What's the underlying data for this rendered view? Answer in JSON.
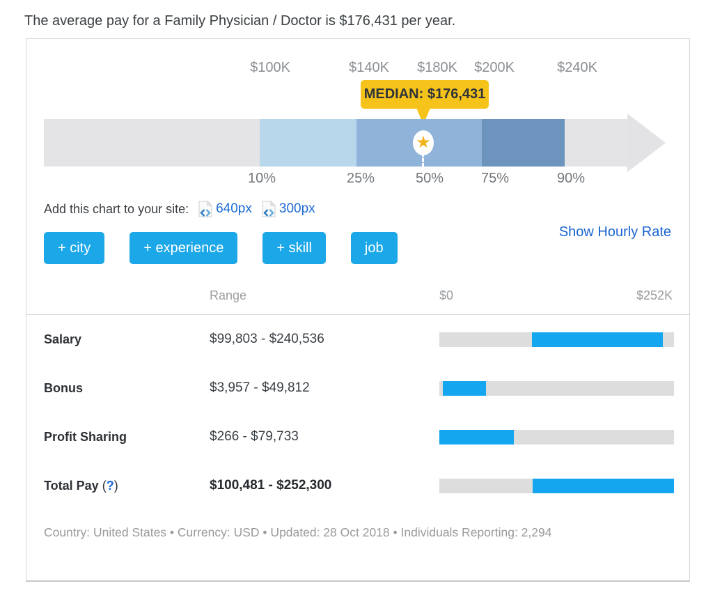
{
  "page": {
    "title": "The average pay for a Family Physician / Doctor is $176,431 per year."
  },
  "colors": {
    "accent_blue": "#1ca7e8",
    "bar_fill_blue": "#14a6ee",
    "link_blue": "#1a66d0",
    "tooltip_yellow": "#f6c31b",
    "star_gold": "#f1b31c",
    "segment_gray": "#e4e4e6",
    "segment_light_blue": "#b9d7eb",
    "segment_mid_blue": "#8fb3d9",
    "segment_dark_blue": "#6c94bc",
    "track_gray": "#dddddd"
  },
  "icons": {
    "star": "★",
    "embed_code": "code-page-icon"
  },
  "chart_data": [
    {
      "type": "percentile_arrow",
      "title": "MEDIAN: $176,431",
      "median_value": 176431,
      "median_label": "MEDIAN: $176,431",
      "axis_ticks": [
        "$100K",
        "$140K",
        "$180K",
        "$200K",
        "$240K"
      ],
      "percentile_ticks": [
        "10%",
        "25%",
        "50%",
        "75%",
        "90%"
      ],
      "p10_value": 99803,
      "p90_value": 240536,
      "legend_position": "none",
      "grid": false
    },
    {
      "type": "bar",
      "axis": {
        "min_label": "$0",
        "max_label": "$252K",
        "max_value": 252300
      },
      "range_header": "Range",
      "rows": [
        {
          "label": "Salary",
          "range": "$99,803 - $240,536",
          "min": 99803,
          "max": 240536,
          "bold": false
        },
        {
          "label": "Bonus",
          "range": "$3,957 - $49,812",
          "min": 3957,
          "max": 49812,
          "bold": false
        },
        {
          "label": "Profit Sharing",
          "range": "$266 - $79,733",
          "min": 266,
          "max": 79733,
          "bold": false
        },
        {
          "label": "Total Pay",
          "paren_open": "(",
          "help": "?",
          "paren_close": ")",
          "range": "$100,481 - $252,300",
          "min": 100481,
          "max": 252300,
          "bold": true
        }
      ]
    }
  ],
  "embed": {
    "prompt": "Add this chart to your site:",
    "links": [
      {
        "label": "640px"
      },
      {
        "label": "300px"
      }
    ]
  },
  "ui": {
    "filter_buttons": [
      {
        "label": "+ city"
      },
      {
        "label": "+ experience"
      },
      {
        "label": "+ skill"
      },
      {
        "label": "job"
      }
    ],
    "hourly_link": "Show Hourly Rate"
  },
  "footer": {
    "text": "Country: United States  •  Currency: USD  •  Updated: 28 Oct 2018  •  Individuals Reporting: 2,294"
  }
}
